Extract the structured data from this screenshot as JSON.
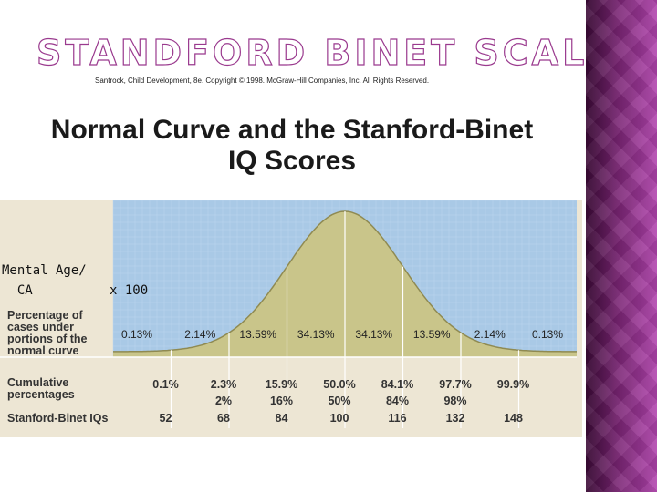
{
  "slide": {
    "title": "STANDFORD BINET SCALES",
    "copyright": "Santrock, Child Development, 8e. Copyright © 1998. McGraw-Hill Companies, Inc. All Rights Reserved.",
    "formula_line1": "Mental Age/",
    "formula_line2": "  CA          x 100"
  },
  "figure": {
    "title_line1": "Normal Curve and the Stanford-Binet",
    "title_line2": "IQ Scores",
    "row_labels": {
      "percentage": [
        "Percentage of",
        "cases under",
        "portions of the",
        "normal curve"
      ],
      "cumulative": [
        "Cumulative",
        "percentages"
      ],
      "iqs": "Stanford-Binet IQs"
    },
    "colors": {
      "plot_bg": "#a9c9e6",
      "curve_fill": "#c9c58a",
      "curve_stroke": "#8f8a52",
      "table_bg": "#ede6d4"
    }
  },
  "chart_data": {
    "type": "area",
    "x": [
      52,
      68,
      84,
      100,
      116,
      132,
      148
    ],
    "segments": [
      "0.13%",
      "2.14%",
      "13.59%",
      "34.13%",
      "34.13%",
      "13.59%",
      "2.14%",
      "0.13%"
    ],
    "cumulative_row1": [
      "0.1%",
      "2.3%",
      "15.9%",
      "50.0%",
      "84.1%",
      "97.7%",
      "99.9%"
    ],
    "cumulative_row2": [
      "",
      "2%",
      "16%",
      "50%",
      "84%",
      "98%",
      ""
    ],
    "iq_labels": [
      "52",
      "68",
      "84",
      "100",
      "116",
      "132",
      "148"
    ]
  }
}
